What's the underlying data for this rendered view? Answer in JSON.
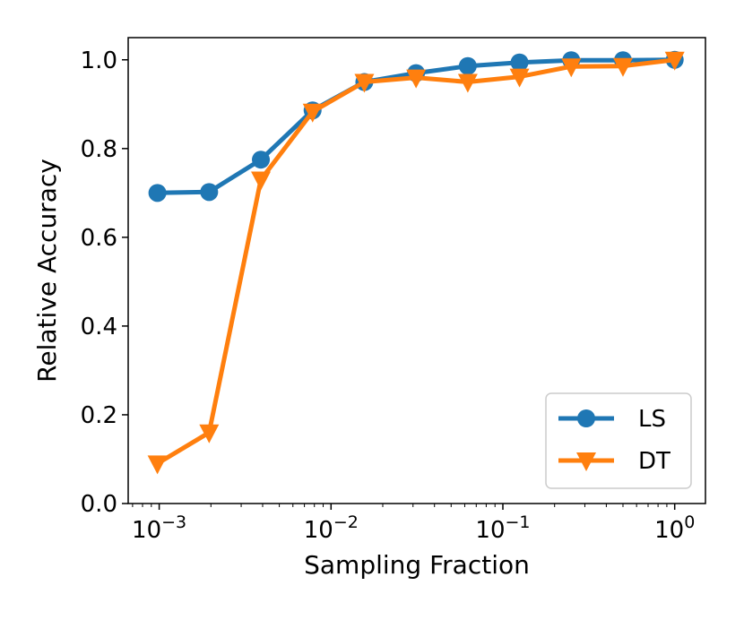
{
  "chart_data": {
    "type": "line",
    "xscale": "log",
    "xlabel": "Sampling Fraction",
    "ylabel": "Relative Accuracy",
    "ylim": [
      0.0,
      1.05
    ],
    "xlim": [
      0.00066,
      1.51
    ],
    "x": [
      0.0009765625,
      0.001953125,
      0.00390625,
      0.0078125,
      0.015625,
      0.03125,
      0.0625,
      0.125,
      0.25,
      0.5,
      1.0
    ],
    "series": [
      {
        "name": "LS",
        "marker": "circle",
        "color": "#1f77b4",
        "values": [
          0.7,
          0.702,
          0.775,
          0.886,
          0.95,
          0.97,
          0.986,
          0.994,
          0.999,
          0.999,
          1.0
        ]
      },
      {
        "name": "DT",
        "marker": "triangle-down",
        "color": "#ff7f0e",
        "values": [
          0.09,
          0.16,
          0.73,
          0.883,
          0.95,
          0.96,
          0.95,
          0.962,
          0.985,
          0.986,
          1.0
        ]
      }
    ],
    "yticks": [
      0.0,
      0.2,
      0.4,
      0.6,
      0.8,
      1.0
    ],
    "yticklabels": [
      "0.0",
      "0.2",
      "0.4",
      "0.6",
      "0.8",
      "1.0"
    ],
    "xticks": [
      0.001,
      0.01,
      0.1,
      1
    ],
    "xtick_base": "10",
    "xtick_exponents": [
      "−3",
      "−2",
      "−1",
      "0"
    ],
    "grid": false,
    "legend": "bottom-right"
  }
}
